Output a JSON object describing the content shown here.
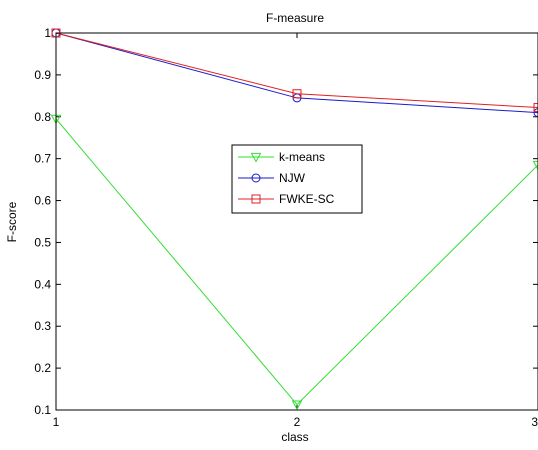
{
  "chart_data": {
    "type": "line",
    "title": "F-measure",
    "xlabel": "class",
    "ylabel": "F-score",
    "x": [
      1,
      2,
      3
    ],
    "xlim": [
      1,
      3
    ],
    "ylim": [
      0.1,
      1
    ],
    "xticks": [
      "1",
      "2",
      "3"
    ],
    "yticks": [
      "0.1",
      "0.2",
      "0.3",
      "0.4",
      "0.5",
      "0.6",
      "0.7",
      "0.8",
      "0.9",
      "1"
    ],
    "grid": false,
    "legend_position": "center",
    "series": [
      {
        "name": "k-means",
        "values": [
          0.795,
          0.113,
          0.685
        ],
        "color": "#33dd33",
        "marker": "triangle-down-icon"
      },
      {
        "name": "NJW",
        "values": [
          1.0,
          0.845,
          0.81
        ],
        "color": "#1a1acc",
        "marker": "circle-icon"
      },
      {
        "name": "FWKE-SC",
        "values": [
          1.0,
          0.855,
          0.822
        ],
        "color": "#e02020",
        "marker": "square-icon"
      }
    ]
  }
}
